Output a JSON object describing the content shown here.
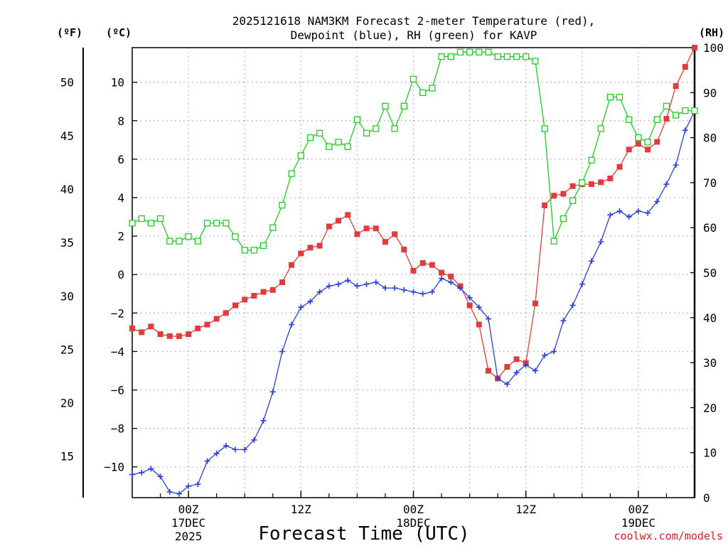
{
  "chart_data": {
    "type": "line",
    "title_line1": "2025121618 NAM3KM Forecast 2-meter Temperature (red),",
    "title_line2": "Dewpoint (blue), RH (green) for KAVP",
    "xlabel": "Forecast Time (UTC)",
    "unit_f": "(ºF)",
    "unit_c": "(ºC)",
    "unit_rh": "(RH)",
    "watermark": "coolwx.com/models",
    "x_range_hours": [
      -6,
      54
    ],
    "y_c_range": [
      -11.6,
      11.8
    ],
    "y_rh_range": [
      0,
      100
    ],
    "x_ticks": [
      {
        "hour": 0,
        "label": "00Z",
        "sub1": "17DEC",
        "sub2": "2025"
      },
      {
        "hour": 12,
        "label": "12Z",
        "sub1": "",
        "sub2": ""
      },
      {
        "hour": 24,
        "label": "00Z",
        "sub1": "18DEC",
        "sub2": ""
      },
      {
        "hour": 36,
        "label": "12Z",
        "sub1": "",
        "sub2": ""
      },
      {
        "hour": 48,
        "label": "00Z",
        "sub1": "19DEC",
        "sub2": ""
      }
    ],
    "y_c_ticks": [
      -10,
      -8,
      -6,
      -4,
      -2,
      0,
      2,
      4,
      6,
      8,
      10
    ],
    "y_f_ticks": [
      15,
      20,
      25,
      30,
      35,
      40,
      45,
      50
    ],
    "y_rh_ticks": [
      0,
      10,
      20,
      30,
      40,
      50,
      60,
      70,
      80,
      90,
      100
    ],
    "hours": [
      -6,
      -5,
      -4,
      -3,
      -2,
      -1,
      0,
      1,
      2,
      3,
      4,
      5,
      6,
      7,
      8,
      9,
      10,
      11,
      12,
      13,
      14,
      15,
      16,
      17,
      18,
      19,
      20,
      21,
      22,
      23,
      24,
      25,
      26,
      27,
      28,
      29,
      30,
      31,
      32,
      33,
      34,
      35,
      36,
      37,
      38,
      39,
      40,
      41,
      42,
      43,
      44,
      45,
      46,
      47,
      48,
      49,
      50,
      51,
      52,
      53,
      54
    ],
    "series": [
      {
        "name": "Temperature",
        "unit": "C",
        "color": "#e03c3c",
        "marker": "filled-square",
        "values": [
          -2.8,
          -3.0,
          -2.7,
          -3.1,
          -3.2,
          -3.2,
          -3.1,
          -2.8,
          -2.6,
          -2.3,
          -2.0,
          -1.6,
          -1.3,
          -1.1,
          -0.9,
          -0.8,
          -0.4,
          0.5,
          1.1,
          1.4,
          1.5,
          2.5,
          2.8,
          3.1,
          2.1,
          2.4,
          2.4,
          1.7,
          2.1,
          1.3,
          0.2,
          0.6,
          0.5,
          0.1,
          -0.1,
          -0.6,
          -1.6,
          -2.6,
          -5.0,
          -5.4,
          -4.8,
          -4.4,
          -4.6,
          -1.5,
          3.6,
          4.1,
          4.2,
          4.6,
          4.7,
          4.7,
          4.8,
          5.0,
          5.6,
          6.5,
          6.8,
          6.5,
          6.9,
          8.1,
          9.8,
          10.8,
          11.8
        ]
      },
      {
        "name": "Dewpoint",
        "unit": "C",
        "color": "#2a3fe0",
        "marker": "plus",
        "values": [
          -10.4,
          -10.3,
          -10.1,
          -10.5,
          -11.3,
          -11.4,
          -11.0,
          -10.9,
          -9.7,
          -9.3,
          -8.9,
          -9.1,
          -9.1,
          -8.6,
          -7.6,
          -6.1,
          -4.0,
          -2.6,
          -1.7,
          -1.4,
          -0.9,
          -0.6,
          -0.5,
          -0.3,
          -0.6,
          -0.5,
          -0.4,
          -0.7,
          -0.7,
          -0.8,
          -0.9,
          -1.0,
          -0.9,
          -0.2,
          -0.4,
          -0.7,
          -1.2,
          -1.7,
          -2.3,
          -5.4,
          -5.7,
          -5.1,
          -4.7,
          -5.0,
          -4.2,
          -4.0,
          -2.4,
          -1.6,
          -0.5,
          0.7,
          1.7,
          3.1,
          3.3,
          3.0,
          3.3,
          3.2,
          3.8,
          4.7,
          5.7,
          7.5,
          8.5
        ]
      },
      {
        "name": "RH",
        "unit": "%",
        "color": "#22cc22",
        "marker": "open-square",
        "values": [
          61,
          62,
          61,
          62,
          57,
          57,
          58,
          57,
          61,
          61,
          61,
          58,
          55,
          55,
          56,
          60,
          65,
          72,
          76,
          80,
          81,
          78,
          79,
          78,
          84,
          81,
          82,
          87,
          82,
          87,
          93,
          90,
          91,
          98,
          98,
          99,
          99,
          99,
          99,
          98,
          98,
          98,
          98,
          97,
          82,
          57,
          62,
          66,
          70,
          75,
          82,
          89,
          89,
          84,
          80,
          79,
          84,
          87,
          85,
          86,
          86
        ]
      }
    ]
  }
}
